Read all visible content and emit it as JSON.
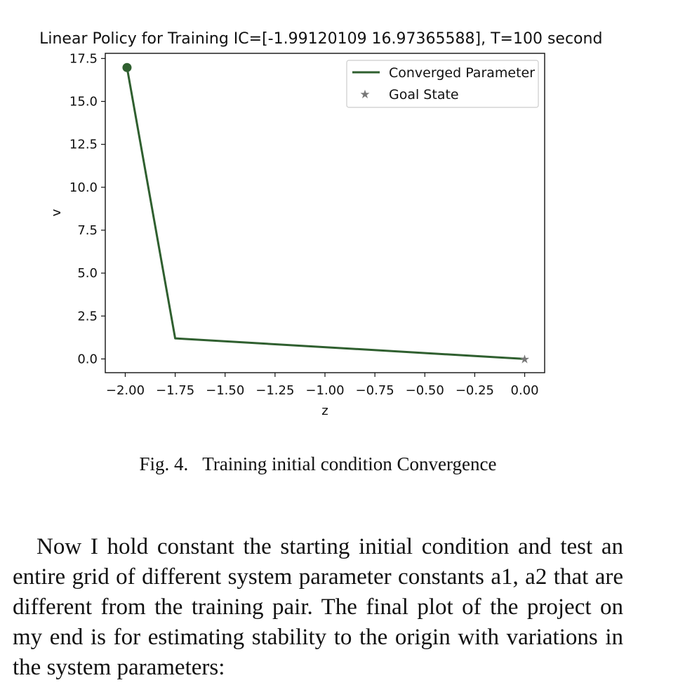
{
  "chart_data": {
    "type": "line",
    "title": "Linear Policy for Training IC=[-1.99120109 16.97365588], T=100 seconds",
    "xlabel": "z",
    "ylabel": "v",
    "xlim": [
      -2.1,
      0.1
    ],
    "ylim": [
      -0.8,
      17.8
    ],
    "x_ticks": [
      "−2.00",
      "−1.75",
      "−1.50",
      "−1.25",
      "−1.00",
      "−0.75",
      "−0.50",
      "−0.25",
      "0.00"
    ],
    "x_tick_values": [
      -2.0,
      -1.75,
      -1.5,
      -1.25,
      -1.0,
      -0.75,
      -0.5,
      -0.25,
      0.0
    ],
    "y_ticks": [
      "0.0",
      "2.5",
      "5.0",
      "7.5",
      "10.0",
      "12.5",
      "15.0",
      "17.5"
    ],
    "y_tick_values": [
      0.0,
      2.5,
      5.0,
      7.5,
      10.0,
      12.5,
      15.0,
      17.5
    ],
    "grid": false,
    "legend_position": "top-right",
    "series": [
      {
        "name": "Converged Parameter",
        "color": "#2f5f2f",
        "x": [
          -1.99120109,
          -1.75,
          0.0
        ],
        "y": [
          16.97365588,
          1.2,
          0.0
        ]
      }
    ],
    "start_marker": {
      "x": -1.99120109,
      "y": 16.97365588,
      "color": "#2f5f2f"
    },
    "goal": {
      "name": "Goal State",
      "x": 0.0,
      "y": 0.0,
      "color": "#777777"
    }
  },
  "caption": {
    "label": "Fig. 4.",
    "text": "Training initial condition Convergence"
  },
  "paragraph": "Now I hold constant the starting initial condition and test an entire grid of different system parameter constants a1, a2 that are different from the training pair. The final plot of the project on my end is for estimating stability to the origin with variations in the system parameters:"
}
